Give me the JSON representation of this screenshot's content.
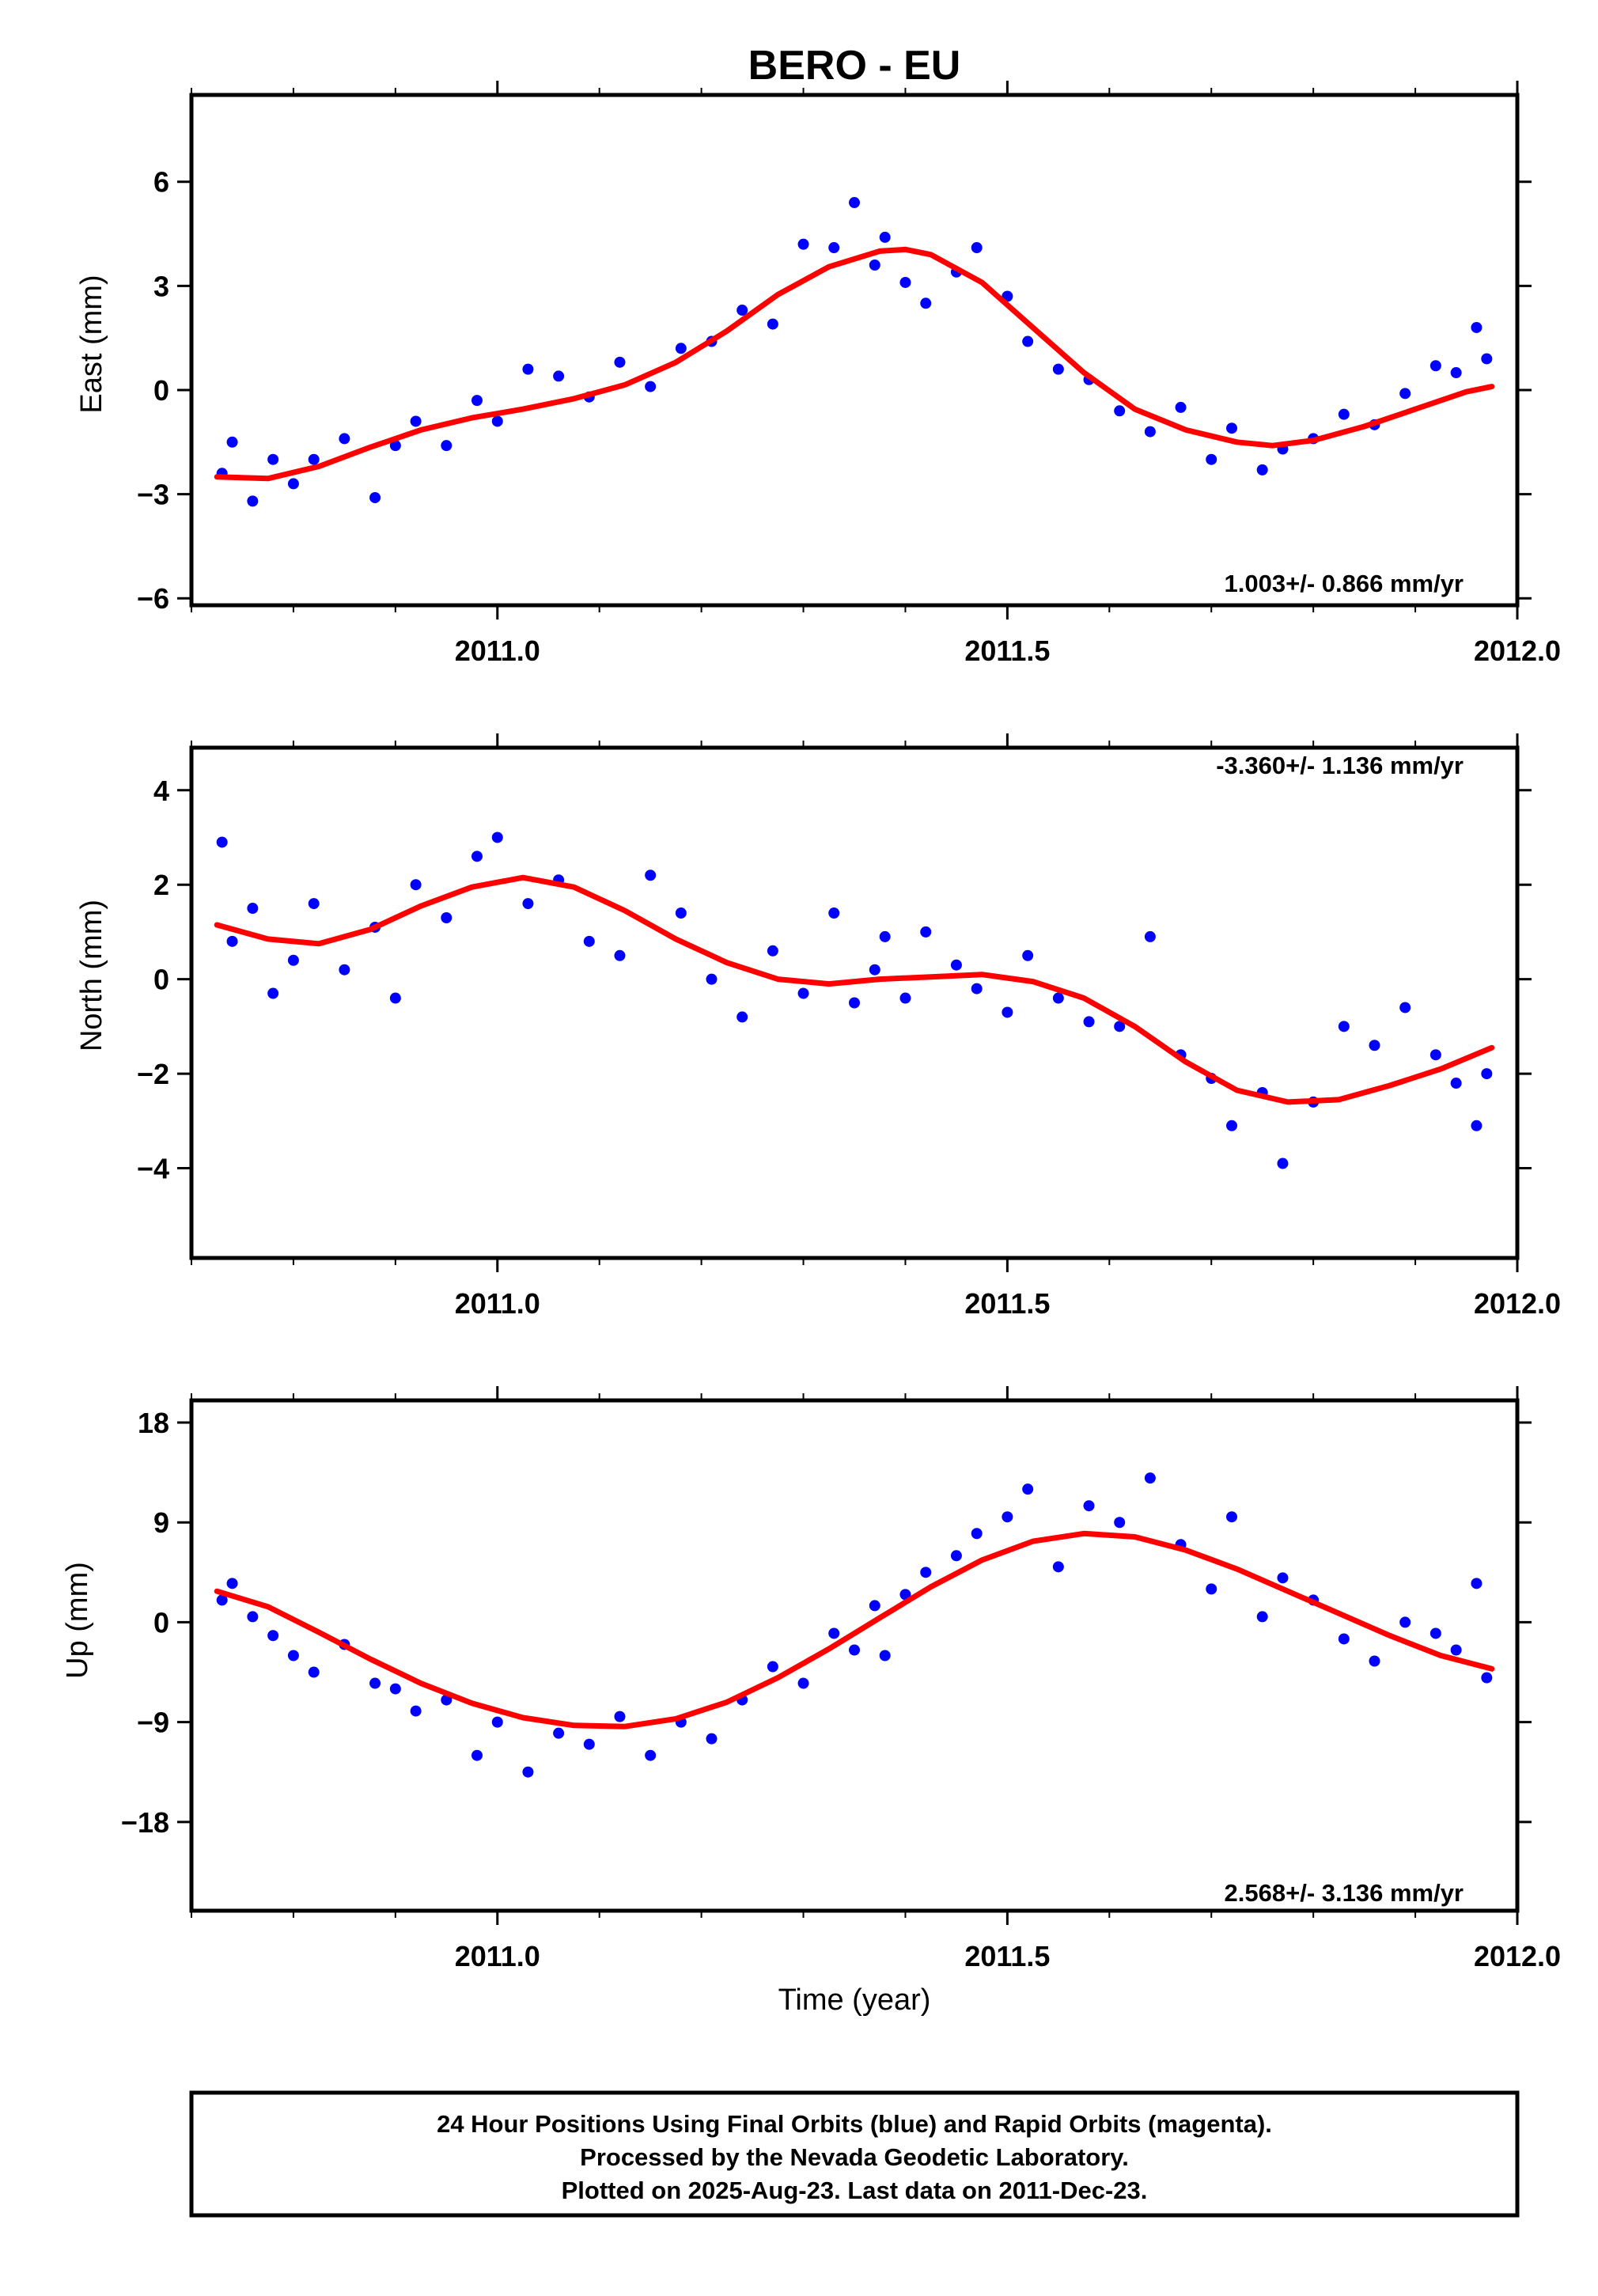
{
  "chart_data": {
    "title": "BERO - EU",
    "xlabel": "Time (year)",
    "x_tick_labels": [
      "2011.0",
      "2011.5",
      "2012.0"
    ],
    "legend_note": [
      "24 Hour Positions Using Final Orbits (blue) and Rapid Orbits (magenta).",
      "Processed by the Nevada Geodetic Laboratory.",
      "Plotted on 2025-Aug-23. Last data on 2011-Dec-23."
    ],
    "colors": {
      "points": "#0000ff",
      "fit": "#ff0000",
      "frame": "#000000"
    },
    "panels": [
      {
        "type": "scatter",
        "ylabel": "East (mm)",
        "rate": "1.003+/- 0.866 mm/yr",
        "rate_position": "bottom-right",
        "xlim": [
          2010.7,
          2012.0
        ],
        "ylim": [
          -6.2,
          8.5
        ],
        "y_ticks": [
          6,
          3,
          0,
          -3,
          -6
        ],
        "x": [
          2010.73,
          2010.74,
          2010.76,
          2010.78,
          2010.8,
          2010.82,
          2010.85,
          2010.88,
          2010.9,
          2010.92,
          2010.95,
          2010.98,
          2011.0,
          2011.03,
          2011.06,
          2011.09,
          2011.12,
          2011.15,
          2011.18,
          2011.21,
          2011.24,
          2011.27,
          2011.3,
          2011.33,
          2011.35,
          2011.37,
          2011.38,
          2011.4,
          2011.42,
          2011.45,
          2011.47,
          2011.5,
          2011.52,
          2011.55,
          2011.58,
          2011.61,
          2011.64,
          2011.67,
          2011.7,
          2011.72,
          2011.75,
          2011.77,
          2011.8,
          2011.83,
          2011.86,
          2011.89,
          2011.92,
          2011.94,
          2011.96,
          2011.97
        ],
        "y": [
          -2.4,
          -1.5,
          -3.2,
          -2.0,
          -2.7,
          -2.0,
          -1.4,
          -3.1,
          -1.6,
          -0.9,
          -1.6,
          -0.3,
          -0.9,
          0.6,
          0.4,
          -0.2,
          0.8,
          0.1,
          1.2,
          1.4,
          2.3,
          1.9,
          4.2,
          4.1,
          5.4,
          3.6,
          4.4,
          3.1,
          2.5,
          3.4,
          4.1,
          2.7,
          1.4,
          0.6,
          0.3,
          -0.6,
          -1.2,
          -0.5,
          -2.0,
          -1.1,
          -2.3,
          -1.7,
          -1.4,
          -0.7,
          -1.0,
          -0.1,
          0.7,
          0.5,
          1.8,
          0.9
        ],
        "fit_x": [
          2010.725,
          2010.775,
          2010.825,
          2010.875,
          2010.925,
          2010.975,
          2011.025,
          2011.075,
          2011.125,
          2011.175,
          2011.225,
          2011.275,
          2011.325,
          2011.375,
          2011.4,
          2011.425,
          2011.475,
          2011.525,
          2011.575,
          2011.625,
          2011.675,
          2011.725,
          2011.76,
          2011.8,
          2011.85,
          2011.9,
          2011.95,
          2011.975
        ],
        "fit_y": [
          -2.5,
          -2.55,
          -2.2,
          -1.65,
          -1.15,
          -0.8,
          -0.55,
          -0.25,
          0.15,
          0.8,
          1.7,
          2.75,
          3.55,
          4.0,
          4.05,
          3.9,
          3.1,
          1.8,
          0.5,
          -0.55,
          -1.15,
          -1.5,
          -1.6,
          -1.45,
          -1.05,
          -0.55,
          -0.05,
          0.1
        ]
      },
      {
        "type": "scatter",
        "ylabel": "North (mm)",
        "rate": "-3.360+/- 1.136 mm/yr",
        "rate_position": "top-right",
        "xlim": [
          2010.7,
          2012.0
        ],
        "ylim": [
          -5.9,
          4.9
        ],
        "y_ticks": [
          4,
          2,
          0,
          -2,
          -4
        ],
        "x": [
          2010.73,
          2010.74,
          2010.76,
          2010.78,
          2010.8,
          2010.82,
          2010.85,
          2010.88,
          2010.9,
          2010.92,
          2010.95,
          2010.98,
          2011.0,
          2011.03,
          2011.06,
          2011.09,
          2011.12,
          2011.15,
          2011.18,
          2011.21,
          2011.24,
          2011.27,
          2011.3,
          2011.33,
          2011.35,
          2011.37,
          2011.38,
          2011.4,
          2011.42,
          2011.45,
          2011.47,
          2011.5,
          2011.52,
          2011.55,
          2011.58,
          2011.61,
          2011.64,
          2011.67,
          2011.7,
          2011.72,
          2011.75,
          2011.77,
          2011.8,
          2011.83,
          2011.86,
          2011.89,
          2011.92,
          2011.94,
          2011.96,
          2011.97
        ],
        "y": [
          2.9,
          0.8,
          1.5,
          -0.3,
          0.4,
          1.6,
          0.2,
          1.1,
          -0.4,
          2.0,
          1.3,
          2.6,
          3.0,
          1.6,
          2.1,
          0.8,
          0.5,
          2.2,
          1.4,
          0.0,
          -0.8,
          0.6,
          -0.3,
          1.4,
          -0.5,
          0.2,
          0.9,
          -0.4,
          1.0,
          0.3,
          -0.2,
          -0.7,
          0.5,
          -0.4,
          -0.9,
          -1.0,
          0.9,
          -1.6,
          -2.1,
          -3.1,
          -2.4,
          -3.9,
          -2.6,
          -1.0,
          -1.4,
          -0.6,
          -1.6,
          -2.2,
          -3.1,
          -2.0
        ],
        "fit_x": [
          2010.725,
          2010.775,
          2010.825,
          2010.875,
          2010.925,
          2010.975,
          2011.025,
          2011.075,
          2011.125,
          2011.175,
          2011.225,
          2011.275,
          2011.325,
          2011.375,
          2011.425,
          2011.475,
          2011.525,
          2011.575,
          2011.625,
          2011.675,
          2011.725,
          2011.775,
          2011.825,
          2011.875,
          2011.925,
          2011.975
        ],
        "fit_y": [
          1.15,
          0.85,
          0.75,
          1.05,
          1.55,
          1.95,
          2.15,
          1.95,
          1.45,
          0.85,
          0.35,
          0.0,
          -0.1,
          0.0,
          0.05,
          0.1,
          -0.05,
          -0.4,
          -1.0,
          -1.75,
          -2.35,
          -2.6,
          -2.55,
          -2.25,
          -1.9,
          -1.45
        ]
      },
      {
        "type": "scatter",
        "ylabel": "Up (mm)",
        "rate": "2.568+/- 3.136 mm/yr",
        "rate_position": "bottom-right",
        "xlim": [
          2010.7,
          2012.0
        ],
        "ylim": [
          -26,
          20
        ],
        "y_ticks": [
          18,
          9,
          0,
          -9,
          -18
        ],
        "x": [
          2010.73,
          2010.74,
          2010.76,
          2010.78,
          2010.8,
          2010.82,
          2010.85,
          2010.88,
          2010.9,
          2010.92,
          2010.95,
          2010.98,
          2011.0,
          2011.03,
          2011.06,
          2011.09,
          2011.12,
          2011.15,
          2011.18,
          2011.21,
          2011.24,
          2011.27,
          2011.3,
          2011.33,
          2011.35,
          2011.37,
          2011.38,
          2011.4,
          2011.42,
          2011.45,
          2011.47,
          2011.5,
          2011.52,
          2011.55,
          2011.58,
          2011.61,
          2011.64,
          2011.67,
          2011.7,
          2011.72,
          2011.75,
          2011.77,
          2011.8,
          2011.83,
          2011.86,
          2011.89,
          2011.92,
          2011.94,
          2011.96,
          2011.97
        ],
        "y": [
          2.0,
          3.5,
          0.5,
          -1.2,
          -3.0,
          -4.5,
          -2.0,
          -5.5,
          -6.0,
          -8.0,
          -7.0,
          -12.0,
          -9.0,
          -13.5,
          -10.0,
          -11.0,
          -8.5,
          -12.0,
          -9.0,
          -10.5,
          -7.0,
          -4.0,
          -5.5,
          -1.0,
          -2.5,
          1.5,
          -3.0,
          2.5,
          4.5,
          6.0,
          8.0,
          9.5,
          12.0,
          5.0,
          10.5,
          9.0,
          13.0,
          7.0,
          3.0,
          9.5,
          0.5,
          4.0,
          2.0,
          -1.5,
          -3.5,
          0.0,
          -1.0,
          -2.5,
          3.5,
          -5.0
        ],
        "fit_x": [
          2010.725,
          2010.775,
          2010.825,
          2010.875,
          2010.925,
          2010.975,
          2011.025,
          2011.075,
          2011.125,
          2011.175,
          2011.225,
          2011.275,
          2011.325,
          2011.375,
          2011.425,
          2011.475,
          2011.525,
          2011.575,
          2011.625,
          2011.675,
          2011.725,
          2011.775,
          2011.825,
          2011.875,
          2011.925,
          2011.975
        ],
        "fit_y": [
          2.8,
          1.4,
          -0.9,
          -3.3,
          -5.5,
          -7.3,
          -8.6,
          -9.3,
          -9.4,
          -8.7,
          -7.2,
          -5.0,
          -2.4,
          0.4,
          3.2,
          5.6,
          7.3,
          8.0,
          7.7,
          6.5,
          4.8,
          2.8,
          0.8,
          -1.2,
          -3.0,
          -4.2
        ]
      }
    ]
  }
}
